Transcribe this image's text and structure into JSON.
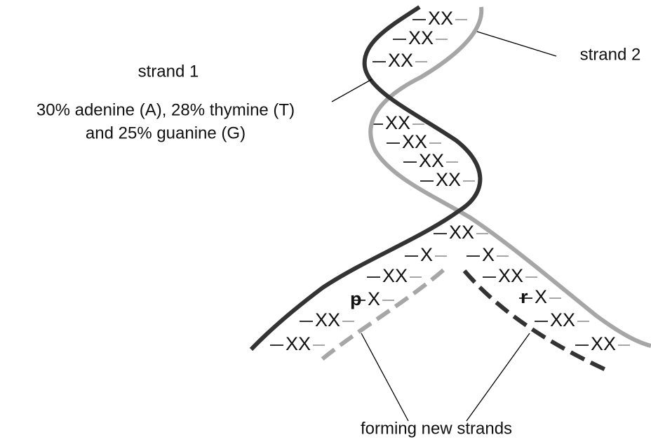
{
  "labels": {
    "strand_1": "strand 1",
    "composition_line_1": "30% adenine (A), 28% thymine (T)",
    "composition_line_2": "and 25% guanine (G)",
    "strand_2": "strand 2",
    "forming": "forming new strands"
  },
  "base_pairs": [
    "XX",
    "XX",
    "XX",
    "XX",
    "XX",
    "XX",
    "XX",
    "XX",
    "X",
    "X",
    "XX",
    "XX",
    "X",
    "X",
    "XX",
    "XX",
    "XX",
    "XX"
  ],
  "new_bases": [
    "p",
    "r"
  ]
}
